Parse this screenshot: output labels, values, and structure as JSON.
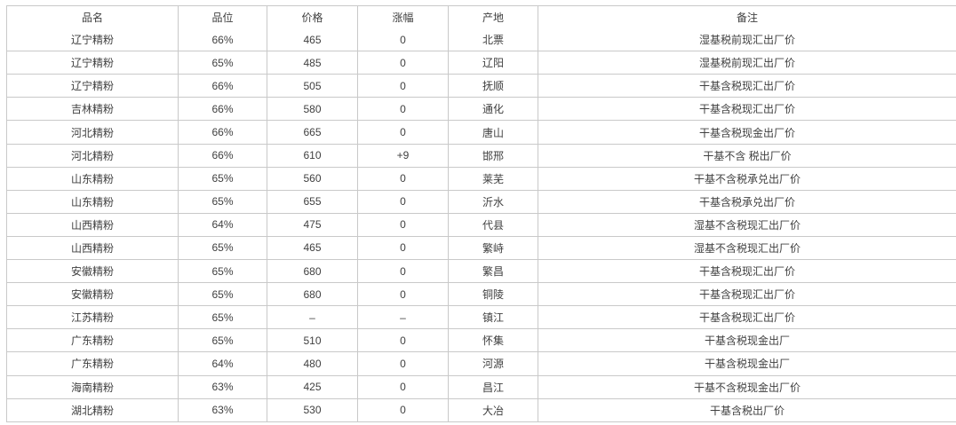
{
  "table": {
    "headers": [
      "品名",
      "品位",
      "价格",
      "涨幅",
      "产地",
      "备注"
    ],
    "columns": [
      "product_name",
      "grade",
      "price",
      "change",
      "origin",
      "remark"
    ],
    "rows": [
      [
        "辽宁精粉",
        "66%",
        "465",
        "0",
        "北票",
        "湿基税前现汇出厂价"
      ],
      [
        "辽宁精粉",
        "65%",
        "485",
        "0",
        "辽阳",
        "湿基税前现汇出厂价"
      ],
      [
        "辽宁精粉",
        "66%",
        "505",
        "0",
        "抚顺",
        "干基含税现汇出厂价"
      ],
      [
        "吉林精粉",
        "66%",
        "580",
        "0",
        "通化",
        "干基含税现汇出厂价"
      ],
      [
        "河北精粉",
        "66%",
        "665",
        "0",
        "唐山",
        "干基含税现金出厂价"
      ],
      [
        "河北精粉",
        "66%",
        "610",
        "+9",
        "邯邢",
        "干基不含 税出厂价"
      ],
      [
        "山东精粉",
        "65%",
        "560",
        "0",
        "莱芜",
        "干基不含税承兑出厂价"
      ],
      [
        "山东精粉",
        "65%",
        "655",
        "0",
        "沂水",
        "干基含税承兑出厂价"
      ],
      [
        "山西精粉",
        "64%",
        "475",
        "0",
        "代县",
        "湿基不含税现汇出厂价"
      ],
      [
        "山西精粉",
        "65%",
        "465",
        "0",
        "繁峙",
        "湿基不含税现汇出厂价"
      ],
      [
        "安徽精粉",
        "65%",
        "680",
        "0",
        "繁昌",
        "干基含税现汇出厂价"
      ],
      [
        "安徽精粉",
        "65%",
        "680",
        "0",
        "铜陵",
        "干基含税现汇出厂价"
      ],
      [
        "江苏精粉",
        "65%",
        "–",
        "–",
        "镇江",
        "干基含税现汇出厂价"
      ],
      [
        "广东精粉",
        "65%",
        "510",
        "0",
        "怀集",
        "干基含税现金出厂"
      ],
      [
        "广东精粉",
        "64%",
        "480",
        "0",
        "河源",
        "干基含税现金出厂"
      ],
      [
        "海南精粉",
        "63%",
        "425",
        "0",
        "昌江",
        "干基不含税现金出厂价"
      ],
      [
        "湖北精粉",
        "63%",
        "530",
        "0",
        "大冶",
        "干基含税出厂价"
      ]
    ],
    "colors": {
      "border": "#c9c9c9",
      "text": "#404040",
      "background": "#ffffff"
    }
  }
}
